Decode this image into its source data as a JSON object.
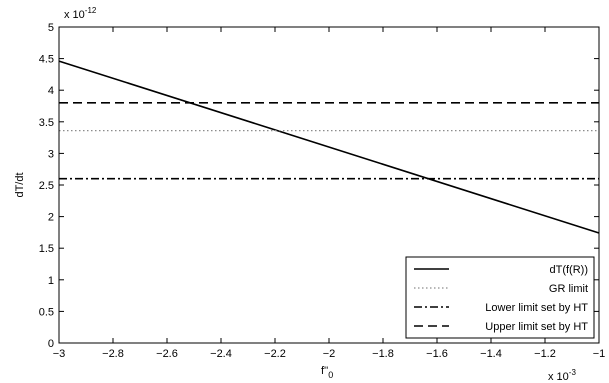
{
  "chart_data": {
    "type": "line",
    "xlabel": "f''",
    "xlabel_sub": "0",
    "ylabel": "dT/dt",
    "x_exponent": "x 10",
    "x_exponent_power": "-3",
    "y_exponent": "x 10",
    "y_exponent_power": "-12",
    "xlim": [
      -3,
      -1
    ],
    "ylim": [
      0,
      5
    ],
    "xticks": [
      -3,
      -2.8,
      -2.6,
      -2.4,
      -2.2,
      -2,
      -1.8,
      -1.6,
      -1.4,
      -1.2,
      -1
    ],
    "xtick_labels": [
      "−3",
      "−2.8",
      "−2.6",
      "−2.4",
      "−2.2",
      "−2",
      "−1.8",
      "−1.6",
      "−1.4",
      "−1.2",
      "−1"
    ],
    "yticks": [
      0,
      0.5,
      1,
      1.5,
      2,
      2.5,
      3,
      3.5,
      4,
      4.5,
      5
    ],
    "ytick_labels": [
      "0",
      "0.5",
      "1",
      "1.5",
      "2",
      "2.5",
      "3",
      "3.5",
      "4",
      "4.5",
      "5"
    ],
    "grid": false,
    "legend_position": "bottom-right",
    "series": [
      {
        "name": "dT(f(R))",
        "style": "solid",
        "x": [
          -3,
          -1
        ],
        "y": [
          4.46,
          1.74
        ]
      },
      {
        "name": "GR limit",
        "style": "dotted",
        "x": [
          -3,
          -1
        ],
        "y": [
          3.36,
          3.36
        ]
      },
      {
        "name": "Lower limit set by HT",
        "style": "dashdot",
        "x": [
          -3,
          -1
        ],
        "y": [
          2.6,
          2.6
        ]
      },
      {
        "name": "Upper limit set by HT",
        "style": "dashed",
        "x": [
          -3,
          -1
        ],
        "y": [
          3.8,
          3.8
        ]
      }
    ],
    "colors": {
      "line": "#000000",
      "gr_line": "#8c8c8c",
      "background": "#ffffff"
    }
  }
}
